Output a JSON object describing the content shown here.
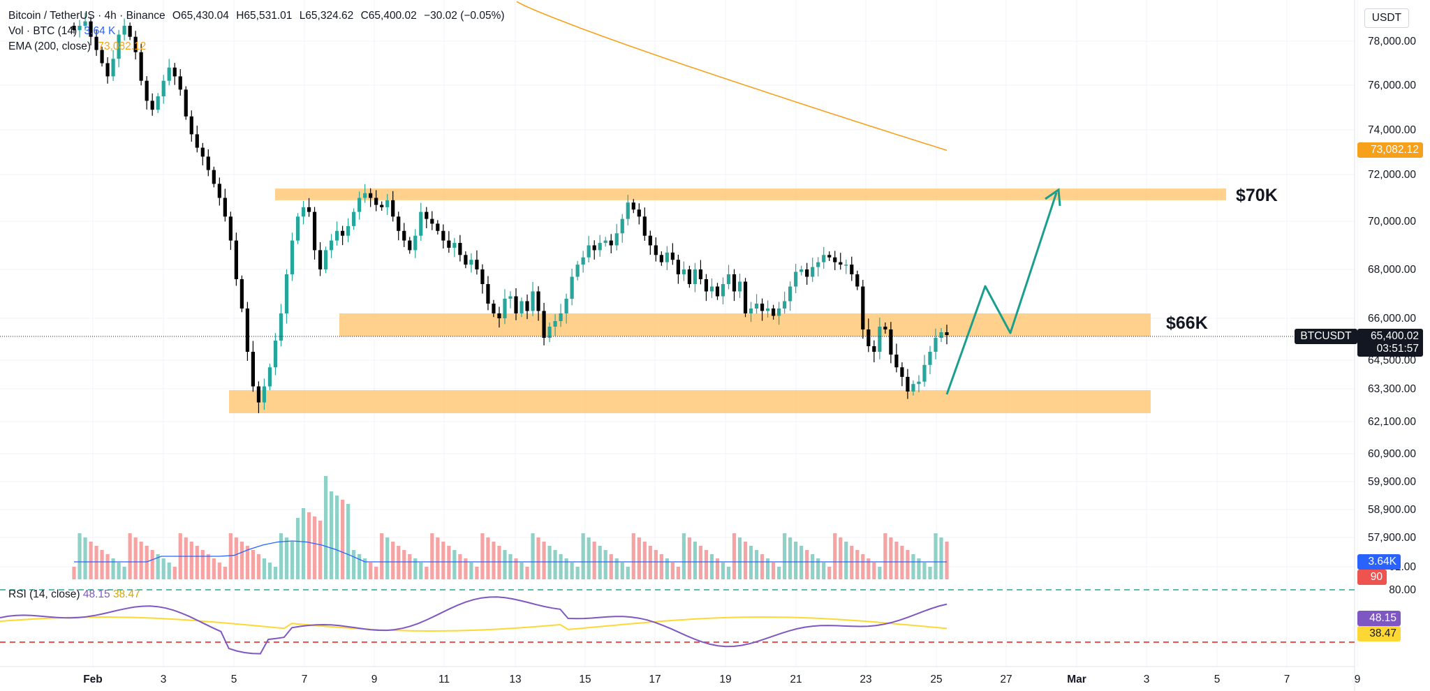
{
  "header": {
    "symbol": "Bitcoin / TetherUS · 4h · Binance",
    "ohlc": {
      "o": "O65,430.04",
      "h": "H65,531.01",
      "l": "L65,324.62",
      "c": "C65,400.02",
      "chg": "−30.02 (−0.05%)"
    },
    "vol_label": "Vol · BTC (14)",
    "vol_value": "3.64 K",
    "ema_label": "EMA (200, close)",
    "ema_value": "73,082.12",
    "currency": "USDT"
  },
  "rsi": {
    "label": "RSI (14, close)",
    "value": "48.15",
    "ma": "38.47",
    "upper": "80.00",
    "tag_value": "48.15",
    "tag_ma": "38.47"
  },
  "tags": {
    "ema": "73,082.12",
    "symbol": "BTCUSDT",
    "price": "65,400.02",
    "countdown": "03:51:57",
    "vol": "3.64K",
    "vol2": "90"
  },
  "zones": {
    "upper": "$70K",
    "middle": "$66K"
  },
  "colors": {
    "up": "#26a69a",
    "down": "#000000",
    "ema": "#f7a11a",
    "zone": "#ffcc80",
    "arrow": "#1a9e8e",
    "rsi": "#7e57c2",
    "rsi_ma": "#fdd835",
    "vol_ma": "#2962ff"
  },
  "chart_data": {
    "type": "candlestick",
    "y_ticks": [
      "78,000.00",
      "76,000.00",
      "74,000.00",
      "72,000.00",
      "70,000.00",
      "68,000.00",
      "66,000.00",
      "64,500.00",
      "63,300.00",
      "62,100.00",
      "60,900.00",
      "59,900.00",
      "58,900.00",
      "57,900.00",
      "01.00"
    ],
    "x_ticks": [
      "Feb",
      "3",
      "5",
      "7",
      "9",
      "11",
      "13",
      "15",
      "17",
      "19",
      "21",
      "23",
      "25",
      "27",
      "Mar",
      "3",
      "5",
      "7",
      "9"
    ],
    "close_path": [
      [
        78500,
        78700,
        78900,
        78200,
        77600,
        77000,
        76400,
        77200,
        78300,
        78700,
        78200,
        77500,
        76200,
        75300,
        74900,
        75500,
        76200,
        76800,
        76400,
        75800,
        74600,
        73800,
        73200,
        72800,
        72200,
        71600,
        71000,
        70200,
        69200,
        67600,
        66400,
        64800,
        63400,
        62800,
        63400,
        64200,
        65200,
        66200,
        67800,
        69200,
        70200,
        70600,
        70400,
        68800,
        68000,
        68800,
        69200,
        69600,
        69400,
        69800,
        70400,
        71000,
        71200,
        71000,
        70700,
        70600,
        70900,
        70200,
        69600,
        69200,
        68800,
        69400,
        70400,
        70100,
        69900,
        69600,
        69200,
        68900,
        69100,
        68600,
        68200,
        68400,
        68000,
        67400,
        66600,
        66200,
        66000,
        66800,
        66900,
        66200,
        66700,
        66300,
        67100,
        66300,
        65300,
        65700,
        65900,
        66200,
        66800,
        67700,
        68200,
        68500,
        69000,
        68800,
        69100,
        69200,
        69000,
        69500,
        70100,
        70800,
        70500,
        70200,
        69400,
        69000,
        68600,
        68300,
        68700,
        68400,
        67800,
        68000,
        67400,
        68000,
        67600,
        67100,
        67300,
        66900,
        67400,
        67800,
        67100,
        67500,
        66200,
        66400,
        66600,
        66300,
        66400,
        66100,
        66400,
        66700,
        67300,
        67900,
        68000,
        67700,
        68100,
        68300,
        68600,
        68500,
        68300,
        68200,
        68200,
        67800,
        67300,
        65600,
        65000,
        64800,
        65700,
        65600,
        64700,
        64200,
        63800,
        63200,
        63500,
        63600,
        64300,
        64800,
        65300,
        65500,
        65400
      ]
    ],
    "ema200": {
      "start": 79800,
      "end": 73082.12
    },
    "zones_price": {
      "upper": [
        70900,
        71400
      ],
      "middle": [
        65300,
        66200
      ],
      "lower": [
        62100,
        63300
      ]
    },
    "current_price": 65400.02
  }
}
